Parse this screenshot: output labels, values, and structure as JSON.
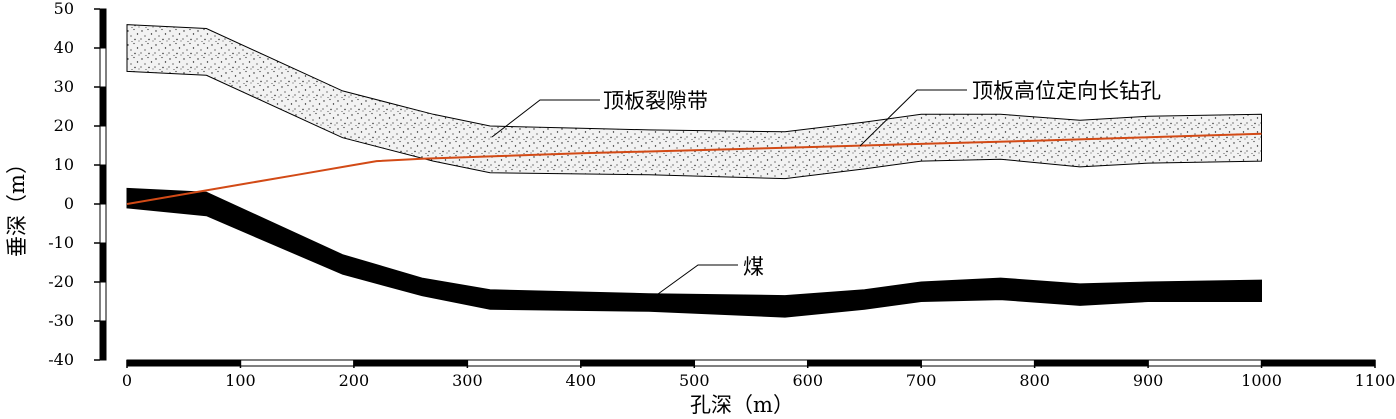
{
  "chart_data": {
    "type": "area",
    "xlabel": "孔深（m）",
    "ylabel": "垂深（m）",
    "xlim": [
      0,
      1100
    ],
    "ylim": [
      -40,
      50
    ],
    "x_ticks": [
      "0",
      "100",
      "200",
      "300",
      "400",
      "500",
      "600",
      "700",
      "800",
      "900",
      "1000",
      "1100"
    ],
    "y_ticks": [
      "-40",
      "-30",
      "-20",
      "-10",
      "0",
      "10",
      "20",
      "30",
      "40",
      "50"
    ],
    "grid": false,
    "series": [
      {
        "name": "顶板裂隙带",
        "kind": "band",
        "fill": "speckled",
        "x": [
          0,
          70,
          190,
          270,
          320,
          460,
          580,
          650,
          700,
          770,
          840,
          900,
          1000
        ],
        "top": [
          46,
          45,
          29,
          23,
          20,
          19,
          18.5,
          21,
          23,
          23,
          21.5,
          22.5,
          23
        ],
        "bottom": [
          34,
          33,
          17,
          11,
          8,
          7.5,
          6.5,
          9,
          11,
          11.5,
          9.5,
          10.5,
          11
        ]
      },
      {
        "name": "煤",
        "kind": "band",
        "fill": "solid",
        "x": [
          0,
          70,
          190,
          260,
          320,
          460,
          580,
          650,
          700,
          770,
          840,
          900,
          1000
        ],
        "top": [
          4,
          3,
          -13,
          -19,
          -22,
          -23,
          -23.5,
          -22,
          -20,
          -19,
          -20.5,
          -20,
          -19.5
        ],
        "bottom": [
          -1,
          -3,
          -18,
          -23.5,
          -27,
          -27.5,
          -29,
          -27,
          -25,
          -24.5,
          -26,
          -25,
          -25
        ]
      },
      {
        "name": "顶板高位定向长钻孔",
        "kind": "line",
        "x": [
          0,
          100,
          150,
          200,
          220,
          260,
          320,
          400,
          500,
          600,
          700,
          800,
          900,
          1000
        ],
        "y": [
          0,
          5,
          7.5,
          10,
          11,
          11.6,
          12.2,
          13,
          13.8,
          14.6,
          15.4,
          16.2,
          17.1,
          18
        ]
      }
    ],
    "annotations": [
      {
        "text": "顶板裂隙带",
        "target": "顶板裂隙带"
      },
      {
        "text": "顶板高位定向长钻孔",
        "target": "顶板高位定向长钻孔"
      },
      {
        "text": "煤",
        "target": "煤"
      }
    ],
    "colors": {
      "borehole": "#d24a16",
      "coal": "#000000",
      "fracture_fill": "#f2f2f2",
      "outline": "#000000"
    }
  }
}
